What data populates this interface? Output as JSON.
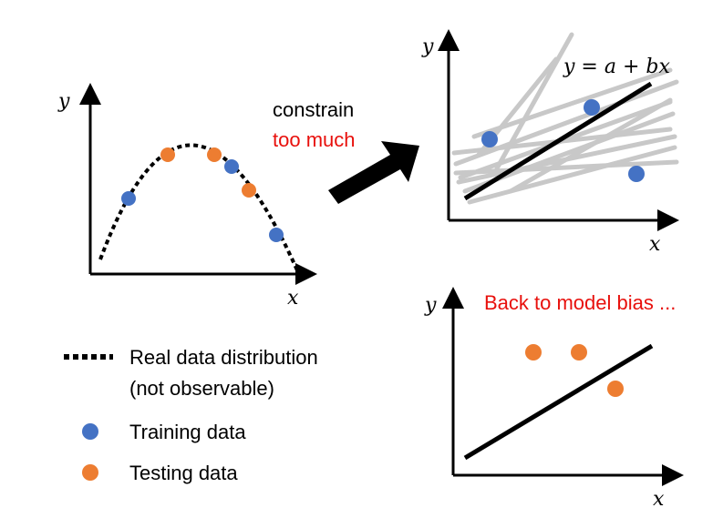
{
  "colors": {
    "training": "#4472c4",
    "testing": "#ed7d31",
    "highlight": "#e8100c",
    "hypothesis_lines": "#c8c8c8"
  },
  "arrow": {
    "line1": "constrain",
    "line2": "too much"
  },
  "panel_left": {
    "x_label": "x",
    "y_label": "y"
  },
  "panel_top_right": {
    "x_label": "x",
    "y_label": "y",
    "equation": "y = a + bx"
  },
  "panel_bottom_right": {
    "x_label": "x",
    "y_label": "y",
    "caption": "Back to model bias ..."
  },
  "legend": {
    "real_line1": "Real data distribution",
    "real_line2": "(not observable)",
    "training": "Training data",
    "testing": "Testing data"
  }
}
